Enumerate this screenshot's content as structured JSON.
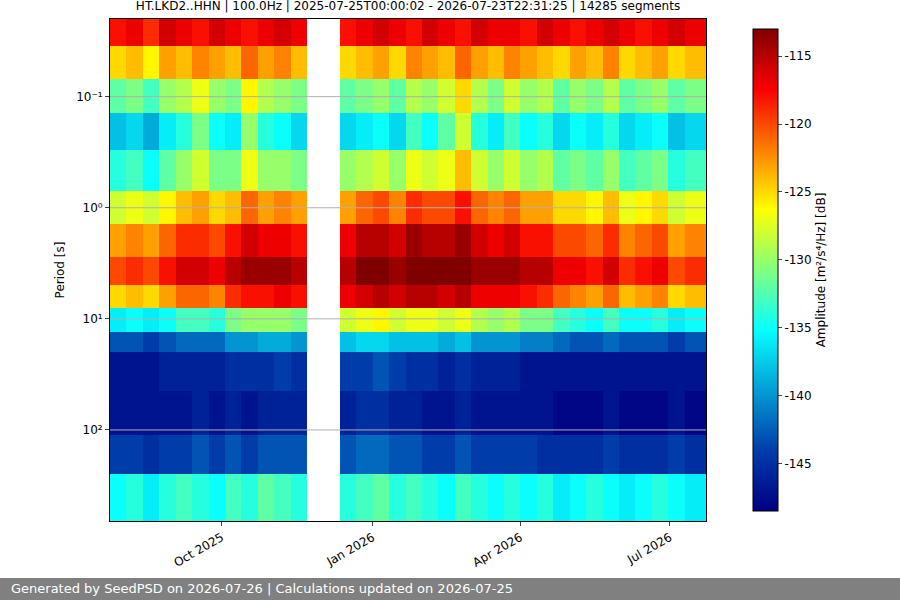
{
  "chart_data": {
    "type": "heatmap",
    "title": "HT.LKD2..HHN | 100.0Hz | 2025-07-25T00:00:02 - 2026-07-23T22:31:25 | 14285 segments",
    "ylabel": "Period [s]",
    "annotations": [
      {
        "text": "Generated by SeedPSD on 2026-07-26 | Calculations updated on 2026-07-25"
      }
    ],
    "log": "y",
    "grid": true,
    "color": "Jet",
    "xlim": [
      "2025-07-25",
      "2026-07-23"
    ],
    "xticks": [
      {
        "value": "2025-10-01",
        "label": "Oct 2025"
      },
      {
        "value": "2026-01-01",
        "label": "Jan 2026"
      },
      {
        "value": "2026-04-01",
        "label": "Apr 2026"
      },
      {
        "value": "2026-07-01",
        "label": "Jul 2026"
      }
    ],
    "ylim": [
      0.02,
      660
    ],
    "yticks": [
      {
        "value": 0.1,
        "label": "10⁻¹"
      },
      {
        "value": 1,
        "label": "10⁰"
      },
      {
        "value": 10,
        "label": "10¹"
      },
      {
        "value": 100,
        "label": "10²"
      }
    ],
    "x_bins": [
      "2025-07-25",
      "2025-08-04",
      "2025-08-14",
      "2025-08-24",
      "2025-09-03",
      "2025-09-13",
      "2025-09-23",
      "2025-10-03",
      "2025-10-13",
      "2025-10-23",
      "2025-11-02",
      "2025-11-12",
      "2025-11-22",
      "2025-12-02",
      "2025-12-12",
      "2025-12-22",
      "2026-01-01",
      "2026-01-11",
      "2026-01-21",
      "2026-01-31",
      "2026-02-10",
      "2026-02-20",
      "2026-03-02",
      "2026-03-12",
      "2026-03-22",
      "2026-04-01",
      "2026-04-11",
      "2026-04-21",
      "2026-05-01",
      "2026-05-11",
      "2026-05-21",
      "2026-05-31",
      "2026-06-10",
      "2026-06-20",
      "2026-06-30",
      "2026-07-10",
      "2026-07-23"
    ],
    "y_bins": [
      0.02,
      0.035,
      0.07,
      0.14,
      0.3,
      0.7,
      1.4,
      2.8,
      5,
      8,
      13,
      20,
      45,
      110,
      250,
      660
    ],
    "cells": [
      [
        -118,
        -117,
        -119,
        -116,
        -117,
        -118,
        -116,
        -117,
        -118,
        -117,
        -116,
        -117,
        null,
        null,
        -118,
        -117,
        -116,
        -117,
        -118,
        -116,
        -117,
        -118,
        -116,
        -117,
        -117,
        -118,
        -116,
        -117,
        -118,
        -117,
        -116,
        -117,
        -118,
        -117,
        -116,
        -117
      ],
      [
        -125,
        -124,
        -126,
        -123,
        -124,
        -122,
        -123,
        -124,
        -121,
        -123,
        -122,
        -124,
        null,
        null,
        -125,
        -124,
        -123,
        -125,
        -122,
        -123,
        -124,
        -121,
        -123,
        -124,
        -122,
        -123,
        -124,
        -125,
        -123,
        -124,
        -122,
        -125,
        -124,
        -123,
        -125,
        -124
      ],
      [
        -132,
        -131,
        -133,
        -130,
        -129,
        -127,
        -130,
        -131,
        -126,
        -129,
        -130,
        -131,
        null,
        null,
        -132,
        -131,
        -130,
        -132,
        -129,
        -130,
        -128,
        -125,
        -129,
        -131,
        -128,
        -130,
        -129,
        -132,
        -130,
        -131,
        -129,
        -132,
        -131,
        -130,
        -132,
        -131
      ],
      [
        -138,
        -137,
        -139,
        -136,
        -134,
        -131,
        -135,
        -136,
        -130,
        -134,
        -135,
        -137,
        null,
        null,
        -137,
        -136,
        -135,
        -137,
        -133,
        -135,
        -132,
        -128,
        -134,
        -136,
        -133,
        -135,
        -134,
        -137,
        -135,
        -136,
        -134,
        -137,
        -136,
        -135,
        -138,
        -137
      ],
      [
        -134,
        -133,
        -135,
        -132,
        -130,
        -128,
        -131,
        -131,
        -127,
        -130,
        -130,
        -131,
        null,
        null,
        -130,
        -129,
        -128,
        -130,
        -127,
        -128,
        -127,
        -124,
        -128,
        -130,
        -128,
        -130,
        -129,
        -132,
        -131,
        -132,
        -130,
        -133,
        -132,
        -131,
        -134,
        -133
      ],
      [
        -128,
        -127,
        -128,
        -126,
        -124,
        -123,
        -125,
        -124,
        -121,
        -123,
        -122,
        -123,
        null,
        null,
        -123,
        -121,
        -120,
        -122,
        -119,
        -120,
        -120,
        -118,
        -121,
        -122,
        -121,
        -123,
        -123,
        -125,
        -125,
        -126,
        -124,
        -127,
        -126,
        -125,
        -128,
        -127
      ],
      [
        -123,
        -122,
        -123,
        -121,
        -119,
        -119,
        -120,
        -118,
        -116,
        -117,
        -117,
        -118,
        null,
        null,
        -117,
        -115,
        -115,
        -116,
        -114,
        -115,
        -115,
        -114,
        -116,
        -117,
        -116,
        -118,
        -118,
        -120,
        -120,
        -121,
        -119,
        -122,
        -121,
        -120,
        -123,
        -122
      ],
      [
        -120,
        -119,
        -120,
        -118,
        -116,
        -116,
        -117,
        -115,
        -114,
        -114,
        -114,
        -115,
        null,
        null,
        -115,
        -113,
        -113,
        -114,
        -113,
        -113,
        -113,
        -113,
        -114,
        -114,
        -114,
        -115,
        -115,
        -117,
        -117,
        -118,
        -116,
        -119,
        -118,
        -117,
        -120,
        -119
      ],
      [
        -125,
        -124,
        -125,
        -123,
        -121,
        -121,
        -122,
        -119,
        -118,
        -118,
        -117,
        -118,
        null,
        null,
        -117,
        -116,
        -115,
        -116,
        -115,
        -115,
        -116,
        -115,
        -117,
        -117,
        -117,
        -118,
        -119,
        -121,
        -122,
        -123,
        -121,
        -124,
        -123,
        -122,
        -125,
        -124
      ],
      [
        -136,
        -135,
        -136,
        -135,
        -133,
        -133,
        -134,
        -131,
        -130,
        -130,
        -130,
        -131,
        null,
        null,
        -128,
        -127,
        -126,
        -128,
        -127,
        -127,
        -128,
        -127,
        -129,
        -130,
        -129,
        -131,
        -131,
        -133,
        -134,
        -135,
        -133,
        -135,
        -135,
        -134,
        -136,
        -135
      ],
      [
        -143,
        -143,
        -144,
        -143,
        -142,
        -142,
        -142,
        -140,
        -140,
        -139,
        -139,
        -140,
        null,
        null,
        -138,
        -137,
        -137,
        -138,
        -138,
        -138,
        -139,
        -138,
        -140,
        -140,
        -140,
        -141,
        -141,
        -142,
        -143,
        -143,
        -142,
        -143,
        -143,
        -143,
        -144,
        -143
      ],
      [
        -147,
        -147,
        -147,
        -146,
        -146,
        -146,
        -146,
        -145,
        -145,
        -145,
        -144,
        -145,
        null,
        null,
        -144,
        -144,
        -143,
        -144,
        -145,
        -145,
        -146,
        -145,
        -146,
        -146,
        -146,
        -147,
        -147,
        -147,
        -147,
        -147,
        -147,
        -147,
        -147,
        -147,
        -147,
        -147
      ],
      [
        -147,
        -147,
        -147,
        -147,
        -147,
        -146,
        -147,
        -146,
        -147,
        -146,
        -146,
        -146,
        null,
        null,
        -146,
        -145,
        -145,
        -146,
        -146,
        -147,
        -147,
        -146,
        -147,
        -147,
        -147,
        -147,
        -147,
        -148,
        -148,
        -148,
        -147,
        -148,
        -148,
        -148,
        -147,
        -148
      ],
      [
        -144,
        -144,
        -145,
        -144,
        -144,
        -143,
        -144,
        -143,
        -144,
        -143,
        -143,
        -143,
        null,
        null,
        -143,
        -142,
        -142,
        -143,
        -143,
        -144,
        -144,
        -143,
        -144,
        -144,
        -144,
        -144,
        -145,
        -145,
        -145,
        -145,
        -144,
        -145,
        -145,
        -145,
        -144,
        -145
      ],
      [
        -135,
        -134,
        -136,
        -134,
        -133,
        -134,
        -135,
        -133,
        -134,
        -132,
        -133,
        -134,
        null,
        null,
        -134,
        -133,
        -132,
        -134,
        -133,
        -134,
        -135,
        -133,
        -134,
        -135,
        -134,
        -135,
        -134,
        -136,
        -135,
        -134,
        -135,
        -136,
        -135,
        -134,
        -135,
        -136
      ]
    ],
    "colorbar": {
      "title": "Amplitude [m²/s⁴/Hz] [dB]",
      "range": [
        -148.5,
        -113
      ],
      "ticks": [
        -145,
        -140,
        -135,
        -130,
        -125,
        -120,
        -115
      ]
    }
  }
}
